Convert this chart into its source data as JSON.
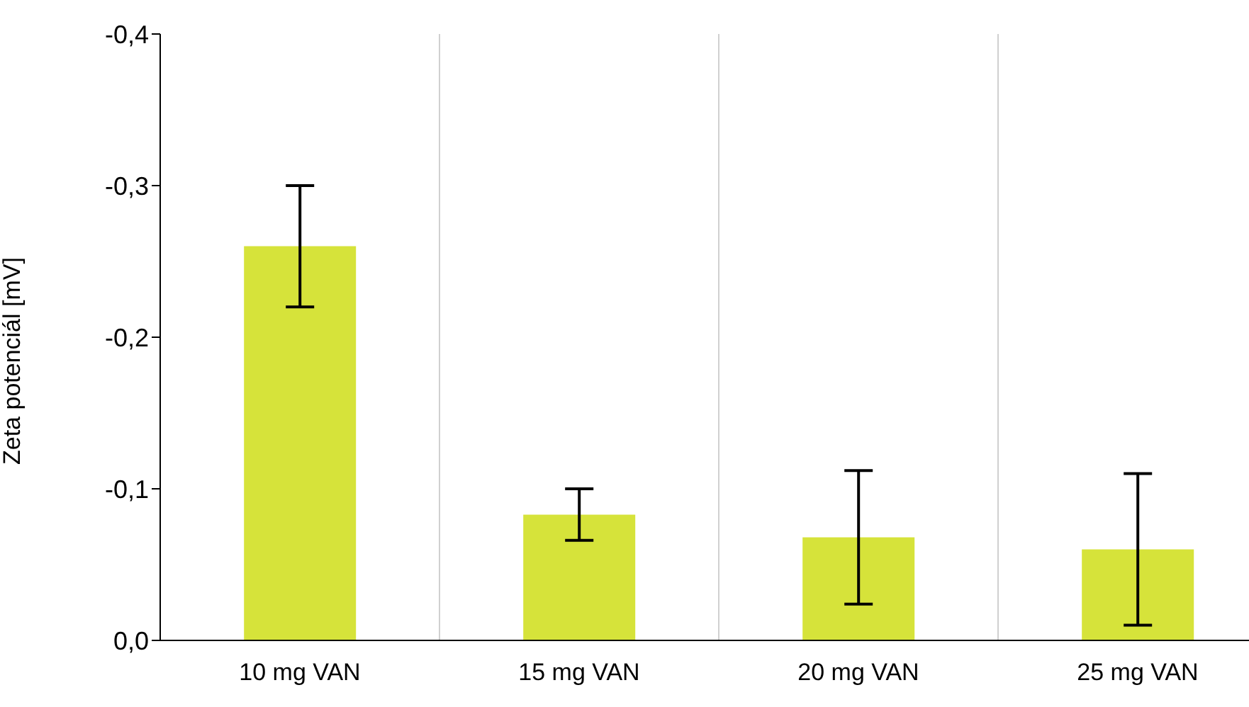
{
  "chart_data": {
    "type": "bar",
    "ylabel": "Zeta potenciál [mV]",
    "categories": [
      "10 mg VAN",
      "15 mg VAN",
      "20 mg VAN",
      "25 mg VAN"
    ],
    "values": [
      -0.26,
      -0.083,
      -0.068,
      -0.06
    ],
    "errors": [
      0.04,
      0.017,
      0.044,
      0.05
    ],
    "color": "#d6e33a",
    "ylim": [
      0,
      -0.4
    ],
    "yticks": [
      {
        "value": 0,
        "label": "0,0"
      },
      {
        "value": -0.1,
        "label": "-0,1"
      },
      {
        "value": -0.2,
        "label": "-0,2"
      },
      {
        "value": -0.3,
        "label": "-0,3"
      },
      {
        "value": -0.4,
        "label": "-0,4"
      }
    ],
    "grid": "x",
    "legend": false
  }
}
